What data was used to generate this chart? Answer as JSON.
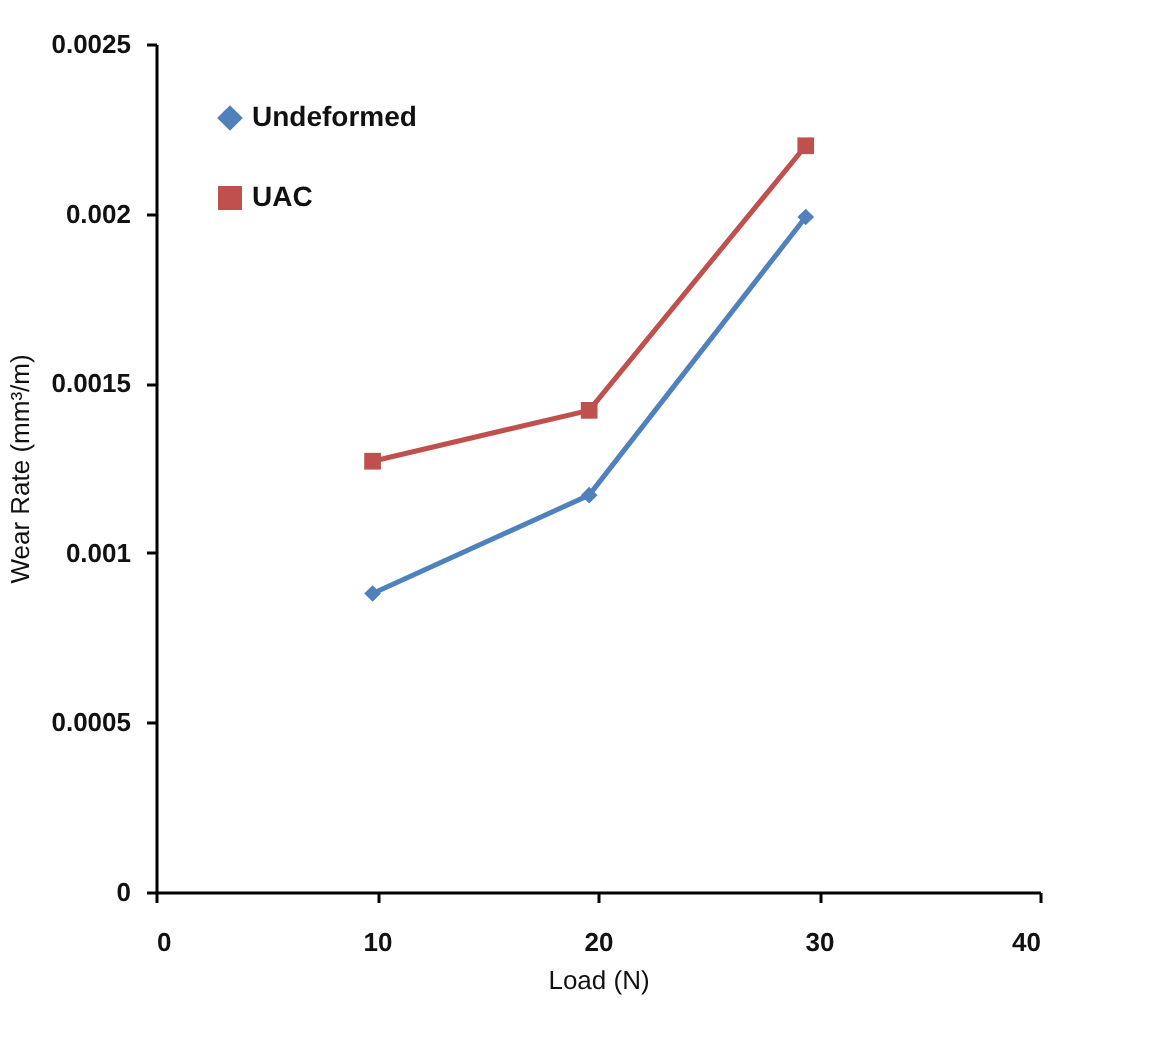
{
  "chart_data": {
    "type": "line",
    "xlabel": "Load (N)",
    "ylabel": "Wear Rate (mm³/m)",
    "x": [
      9.8,
      19.6,
      29.4
    ],
    "series": [
      {
        "name": "Undeformed",
        "color": "#4f81bd",
        "marker": "diamond",
        "values": [
          0.00088,
          0.00117,
          0.00199
        ]
      },
      {
        "name": "UAC",
        "color": "#c0504d",
        "marker": "square",
        "values": [
          0.00127,
          0.00142,
          0.0022
        ]
      }
    ],
    "xlim": [
      0,
      40
    ],
    "xticks": [
      0,
      10,
      20,
      30,
      40
    ],
    "ylim": [
      0,
      0.0025
    ],
    "yticks": [
      0,
      0.0005,
      0.001,
      0.0015,
      0.002,
      0.0025
    ],
    "grid": false,
    "legend": "top left",
    "line_style": "solid"
  }
}
